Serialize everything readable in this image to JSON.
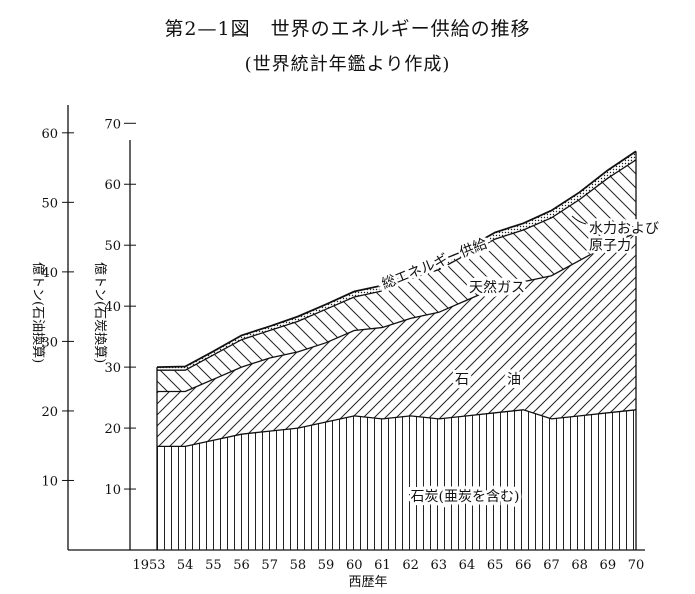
{
  "chart_data": {
    "type": "area",
    "title": "第2—1図　世界のエネルギー供給の推移",
    "subtitle": "(世界統計年鑑より作成)",
    "xlabel": "西歴年",
    "categories": [
      "1953",
      "54",
      "55",
      "56",
      "57",
      "58",
      "59",
      "60",
      "61",
      "62",
      "63",
      "64",
      "65",
      "66",
      "67",
      "68",
      "69",
      "70"
    ],
    "x": [
      1953,
      1954,
      1955,
      1956,
      1957,
      1958,
      1959,
      1960,
      1961,
      1962,
      1963,
      1964,
      1965,
      1966,
      1967,
      1968,
      1969,
      1970
    ],
    "axes": {
      "left": {
        "label": "億トン(石油換算)",
        "ticks": [
          "10",
          "20",
          "30",
          "40",
          "50",
          "60"
        ],
        "tick_values": [
          10,
          20,
          30,
          40,
          50,
          60
        ],
        "ylim": [
          0,
          64
        ]
      },
      "right": {
        "label": "億トン(石炭換算)",
        "ticks": [
          "10",
          "20",
          "30",
          "40",
          "50",
          "60",
          "70"
        ],
        "tick_values": [
          10,
          20,
          30,
          40,
          50,
          60,
          70
        ],
        "ylim": [
          0,
          73
        ]
      }
    },
    "stack_axis": "right",
    "series": [
      {
        "name": "石炭(亜炭を含む)",
        "values": [
          17,
          17,
          18,
          19,
          19.5,
          20,
          21,
          22,
          21.5,
          22,
          21.5,
          22,
          22.5,
          23,
          21.5,
          22,
          22.5,
          23
        ],
        "pattern": "vertical-lines"
      },
      {
        "name": "石油",
        "values": [
          9,
          9,
          10,
          11,
          12,
          12.5,
          13,
          14,
          15,
          16,
          17.5,
          19,
          20.5,
          21,
          23.5,
          25.5,
          27.5,
          29
        ],
        "pattern": "diagonal-lines"
      },
      {
        "name": "天然ガス",
        "values": [
          3.5,
          3.5,
          4,
          4.5,
          4.5,
          5,
          5.5,
          5.5,
          6,
          6.5,
          7,
          7.5,
          8,
          8.5,
          9.5,
          10,
          11,
          12
        ],
        "pattern": "anti-diagonal-lines"
      },
      {
        "name": "水力および原子力",
        "values": [
          0.5,
          0.6,
          0.6,
          0.7,
          0.7,
          0.8,
          0.8,
          0.9,
          0.9,
          1,
          1,
          1,
          1.1,
          1.1,
          1.2,
          1.2,
          1.3,
          1.4
        ],
        "pattern": "dotted"
      }
    ],
    "annotations": {
      "total": "総エネルギー供給",
      "hydro_nuclear": [
        "水力および",
        "原子力"
      ],
      "oil_chars": [
        "石",
        "油"
      ]
    },
    "grid": false,
    "legend": "none"
  }
}
